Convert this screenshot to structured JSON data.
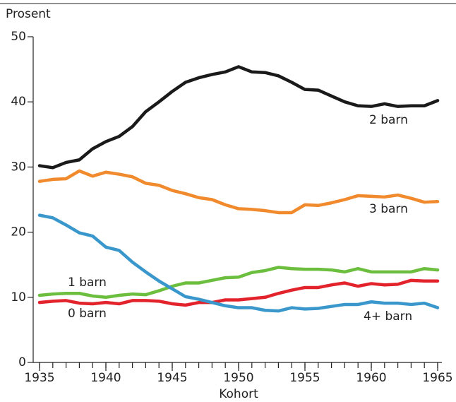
{
  "chart_data": {
    "type": "line",
    "y_label": "Prosent",
    "x_label": "Kohort",
    "x": [
      1935,
      1936,
      1937,
      1938,
      1939,
      1940,
      1941,
      1942,
      1943,
      1944,
      1945,
      1946,
      1947,
      1948,
      1949,
      1950,
      1951,
      1952,
      1953,
      1954,
      1955,
      1956,
      1957,
      1958,
      1959,
      1960,
      1961,
      1962,
      1963,
      1964,
      1965
    ],
    "series": [
      {
        "name": "2 barn",
        "color": "#1a1a1a",
        "values": [
          30.2,
          29.9,
          30.7,
          31.1,
          32.8,
          33.9,
          34.7,
          36.2,
          38.5,
          40.0,
          41.6,
          43.0,
          43.7,
          44.2,
          44.6,
          45.4,
          44.6,
          44.5,
          44.0,
          43.0,
          41.9,
          41.8,
          40.9,
          40.0,
          39.4,
          39.3,
          39.7,
          39.3,
          39.4,
          39.4,
          40.2
        ]
      },
      {
        "name": "3 barn",
        "color": "#f08a2c",
        "values": [
          27.8,
          28.1,
          28.2,
          29.4,
          28.6,
          29.2,
          28.9,
          28.5,
          27.5,
          27.2,
          26.4,
          25.9,
          25.3,
          25.0,
          24.2,
          23.6,
          23.5,
          23.3,
          23.0,
          23.0,
          24.2,
          24.1,
          24.5,
          25.0,
          25.6,
          25.5,
          25.4,
          25.7,
          25.2,
          24.6,
          24.7
        ]
      },
      {
        "name": "1 barn",
        "color": "#6cbf3e",
        "values": [
          10.3,
          10.5,
          10.6,
          10.6,
          10.2,
          10.0,
          10.3,
          10.5,
          10.4,
          11.0,
          11.7,
          12.2,
          12.2,
          12.6,
          13.0,
          13.1,
          13.8,
          14.1,
          14.6,
          14.4,
          14.3,
          14.3,
          14.2,
          13.9,
          14.4,
          13.9,
          13.9,
          13.9,
          13.9,
          14.4,
          14.2
        ]
      },
      {
        "name": "0 barn",
        "color": "#e3232c",
        "values": [
          9.2,
          9.4,
          9.5,
          9.1,
          9.0,
          9.2,
          9.0,
          9.5,
          9.5,
          9.4,
          9.0,
          8.8,
          9.2,
          9.2,
          9.6,
          9.6,
          9.8,
          10.0,
          10.6,
          11.1,
          11.5,
          11.5,
          11.9,
          12.2,
          11.7,
          12.1,
          11.9,
          12.0,
          12.6,
          12.5,
          12.5
        ]
      },
      {
        "name": "4+ barn",
        "color": "#3a97cc",
        "values": [
          22.6,
          22.2,
          21.1,
          19.9,
          19.4,
          17.7,
          17.2,
          15.4,
          13.9,
          12.5,
          11.3,
          10.1,
          9.7,
          9.2,
          8.7,
          8.4,
          8.4,
          8.0,
          7.9,
          8.4,
          8.2,
          8.3,
          8.6,
          8.9,
          8.9,
          9.3,
          9.1,
          9.1,
          8.9,
          9.1,
          8.4
        ]
      }
    ],
    "xlim": [
      1935,
      1965
    ],
    "xticks": [
      1935,
      1940,
      1945,
      1950,
      1955,
      1960,
      1965
    ],
    "ylim": [
      0,
      50
    ],
    "yticks": [
      0,
      10,
      20,
      30,
      40,
      50
    ]
  }
}
